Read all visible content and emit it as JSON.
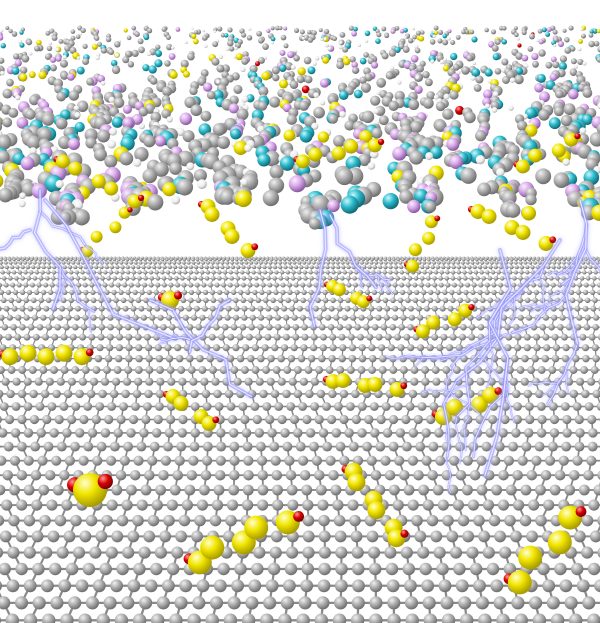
{
  "scene": {
    "description_colors": {
      "background": "#ffffff",
      "carbon": "#9a9a9a",
      "carbon_highlight": "#e6e6e6",
      "sulfur": "#f2e600",
      "sulfur_highlight": "#fffbb0",
      "oxygen": "#d80000",
      "nitrogen": "#2ab8c8",
      "fluorine": "#d7a8e8",
      "hydrogen": "#f4f4f4",
      "lightning": "#3a3cff",
      "lightning_glow": "#9c9cff"
    },
    "icons": [
      "graphene-sheet",
      "polymer-layer",
      "polysulfide-chains",
      "electron-lightning"
    ]
  }
}
